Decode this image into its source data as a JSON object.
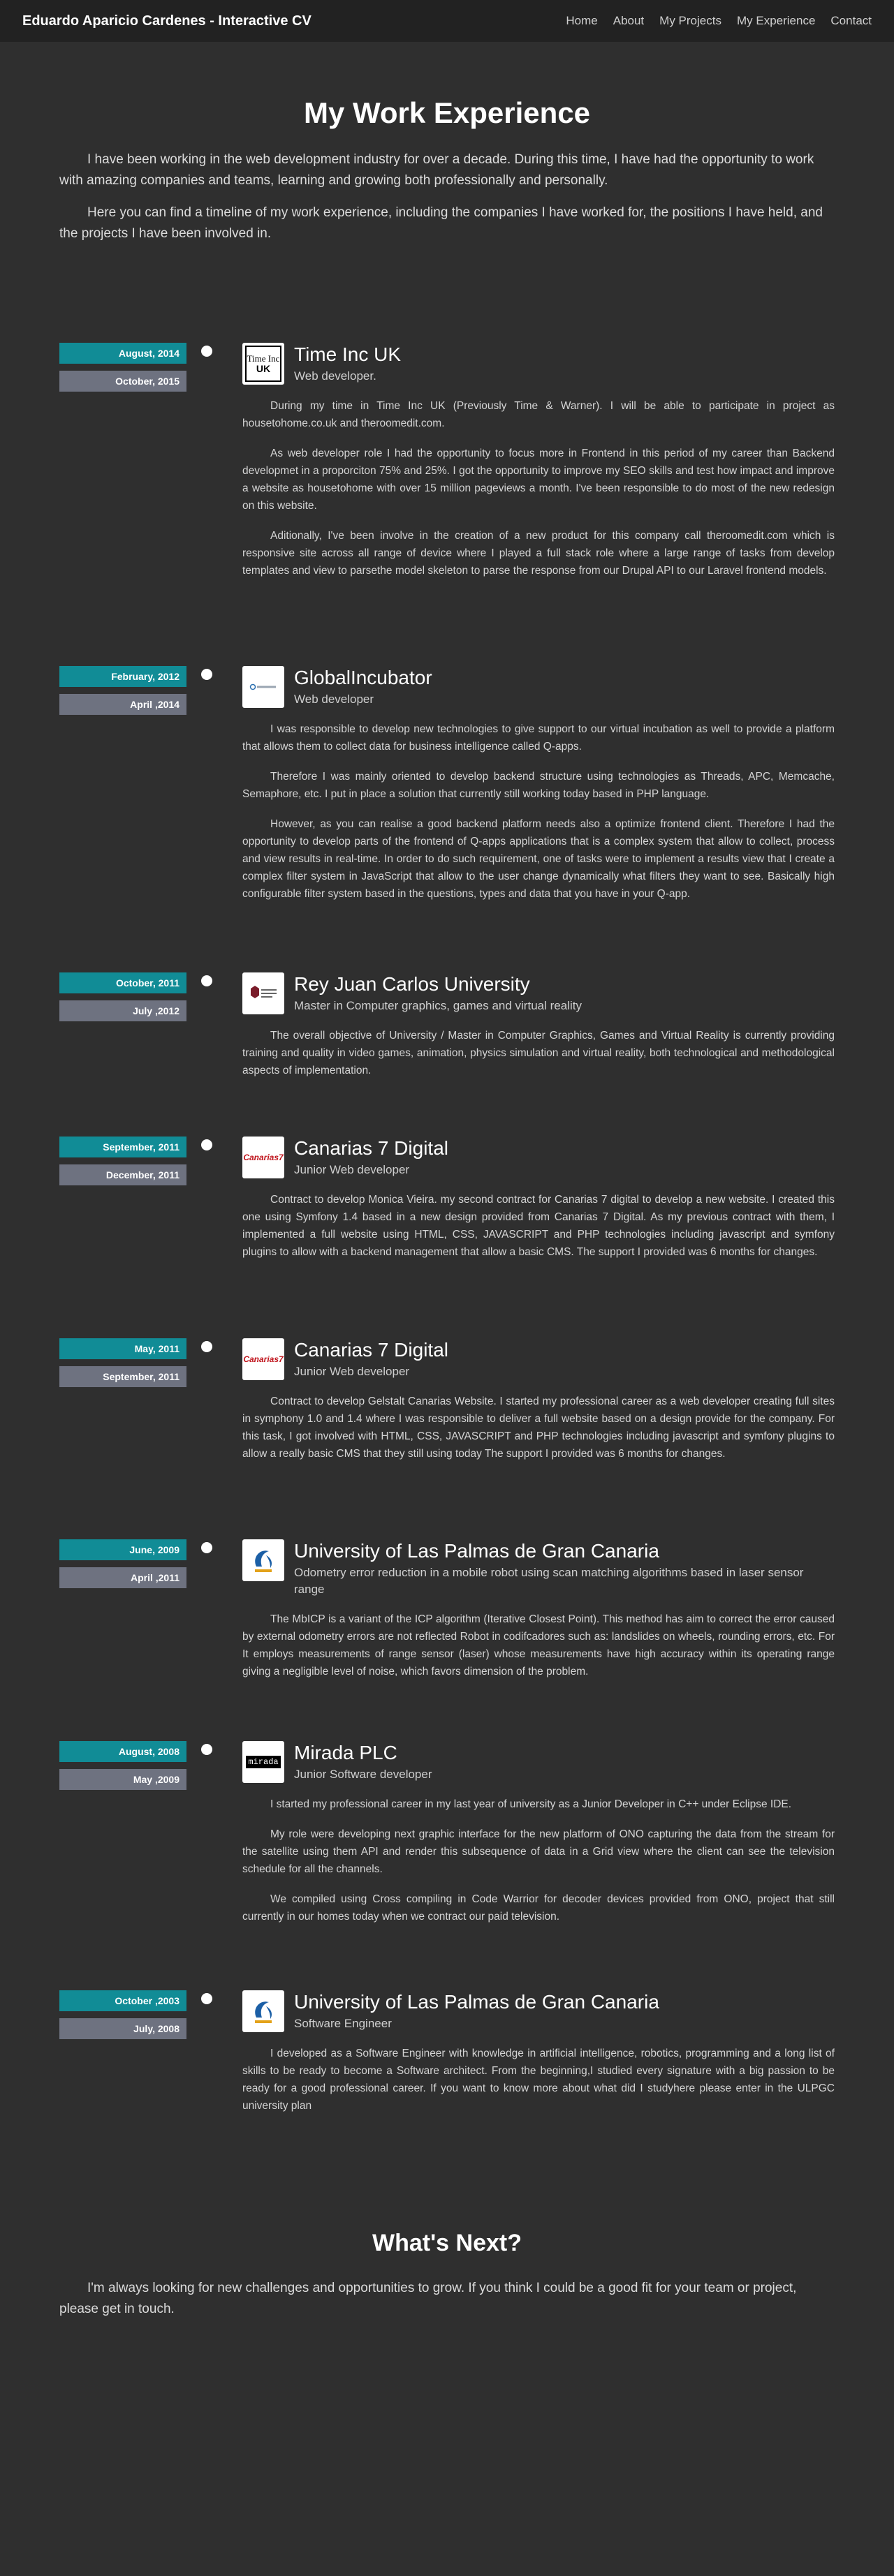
{
  "navbar": {
    "brand": "Eduardo Aparicio Cardenes - Interactive CV",
    "links": [
      "Home",
      "About",
      "My Projects",
      "My Experience",
      "Contact"
    ]
  },
  "hero": {
    "title": "My Work Experience",
    "paragraphs": [
      "I have been working in the web development industry for over a decade. During this time, I have had the opportunity to work with amazing companies and teams, learning and growing both professionally and personally.",
      "Here you can find a timeline of my work experience, including the companies I have worked for, the positions I have held, and the projects I have been involved in."
    ]
  },
  "timeline": [
    {
      "start": "August, 2014",
      "end": "October, 2015",
      "logo": "time-inc-uk-logo",
      "logo_text": [
        "Time Inc",
        "UK"
      ],
      "title": "Time Inc UK",
      "role": "Web developer.",
      "paragraphs": [
        "During my time in Time Inc UK (Previously Time & Warner). I will be able to participate in project as housetohome.co.uk and theroomedit.com.",
        "As web developer role I had the opportunity to focus more in Frontend in this period of my career than Backend developmet in a proporciton 75% and 25%. I got the opportunity to improve my SEO skills and test how impact and improve a website as housetohome with over 15 million pageviews a month. I've been responsible to do most of the new redesign on this website.",
        "Aditionally, I've been involve in the creation of a new product for this company call theroomedit.com which is responsive site across all range of device where I played a full stack role where a large range of tasks from develop templates and view to parsethe model skeleton to parse the response from our Drupal API to our Laravel frontend models."
      ]
    },
    {
      "start": "February, 2012",
      "end": "April ,2014",
      "logo": "globalincubator-logo",
      "title": "GlobalIncubator",
      "role": "Web developer",
      "paragraphs": [
        "I was responsible to develop new technologies to give support to our virtual incubation as well to provide a platform that allows them to collect data for business intelligence called Q-apps.",
        "Therefore I was mainly oriented to develop backend structure using technologies as Threads, APC, Memcache, Semaphore, etc. I put in place a solution that currently still working today based in PHP language.",
        "However, as you can realise a good backend platform needs also a optimize frontend client. Therefore I had the opportunity to develop parts of the frontend of Q-apps applications that is a complex system that allow to collect, process and view results in real-time. In order to do such requirement, one of tasks were to implement a results view that I create a complex filter system in JavaScript that allow to the user change dynamically what filters they want to see. Basically high configurable filter system based in the questions, types and data that you have in your Q-app."
      ]
    },
    {
      "start": "October, 2011",
      "end": "July ,2012",
      "logo": "rey-juan-carlos-logo",
      "title": "Rey Juan Carlos University",
      "role": "Master in Computer graphics, games and virtual reality",
      "paragraphs": [
        "The overall objective of University / Master in Computer Graphics, Games and Virtual Reality is currently providing training and quality in video games, animation, physics simulation and virtual reality, both technological and methodological aspects of implementation."
      ]
    },
    {
      "start": "September, 2011",
      "end": "December, 2011",
      "logo": "canarias7-logo",
      "logo_text": [
        "Canarias7"
      ],
      "title": "Canarias 7 Digital",
      "role": "Junior Web developer",
      "paragraphs": [
        "Contract to develop Monica Vieira. my second contract for Canarias 7 digital to develop a new website. I created this one using Symfony 1.4 based in a new design provided from Canarias 7 Digital. As my previous contract with them, I implemented a full website using HTML, CSS, JAVASCRIPT and PHP technologies including javascript and symfony plugins to allow with a backend management that allow a basic CMS. The support I provided was 6 months for changes."
      ]
    },
    {
      "start": "May, 2011",
      "end": "September, 2011",
      "logo": "canarias7-logo",
      "logo_text": [
        "Canarias7"
      ],
      "title": "Canarias 7 Digital",
      "role": "Junior Web developer",
      "paragraphs": [
        "Contract to develop Gelstalt Canarias Website. I started my professional career as a web developer creating full sites in symphony 1.0 and 1.4 where I was responsible to deliver a full website based on a design provide for the company. For this task, I got involved with HTML, CSS, JAVASCRIPT and PHP technologies including javascript and symfony plugins to allow a really basic CMS that they still using today The support I provided was 6 months for changes."
      ]
    },
    {
      "start": "June, 2009",
      "end": "April ,2011",
      "logo": "ulpgc-logo",
      "title": "University of Las Palmas de Gran Canaria",
      "role": "Odometry error reduction in a mobile robot using scan matching algorithms based in laser sensor range",
      "paragraphs": [
        "The MbICP is a variant of the ICP algorithm (Iterative Closest Point). This method has aim to correct the error caused by external odometry errors are not reflected Robot in codifcadores such as: landslides on wheels, rounding errors, etc. For It employs measurements of range sensor (laser) whose measurements have high accuracy within its operating range giving a negligible level of noise, which favors dimension of the problem."
      ]
    },
    {
      "start": "August, 2008",
      "end": "May ,2009",
      "logo": "mirada-logo",
      "logo_text": [
        "mirada"
      ],
      "title": "Mirada PLC",
      "role": "Junior Software developer",
      "paragraphs": [
        "I started my professional career in my last year of university as a Junior Developer in C++ under Eclipse IDE.",
        "My role were developing next graphic interface for the new platform of ONO capturing the data from the stream for the satellite using them API and render this subsequence of data in a Grid view where the client can see the television schedule for all the channels.",
        "We compiled using Cross compiling in Code Warrior for decoder devices provided from ONO, project that still currently in our homes today when we contract our paid television."
      ]
    },
    {
      "start": "October ,2003",
      "end": "July, 2008",
      "logo": "ulpgc-logo",
      "title": "University of Las Palmas de Gran Canaria",
      "role": "Software Engineer",
      "paragraphs": [
        "I developed as a Software Engineer with knowledge in artificial intelligence, robotics, programming and a long list of skills to be ready to become a Software architect. From the beginning,I studied every signature with a big passion to be ready for a good professional career. If you want to know more about what did I studyhere please enter in the ULPGC university plan"
      ]
    }
  ],
  "next": {
    "title": "What's Next?",
    "text": "I'm always looking for new challenges and opportunities to grow. If you think I could be a good fit for your team or project, please get in touch."
  },
  "colors": {
    "start_badge": "#118c96",
    "end_badge": "#6e7280",
    "background": "#2f2f2f",
    "navbar": "#222222"
  }
}
